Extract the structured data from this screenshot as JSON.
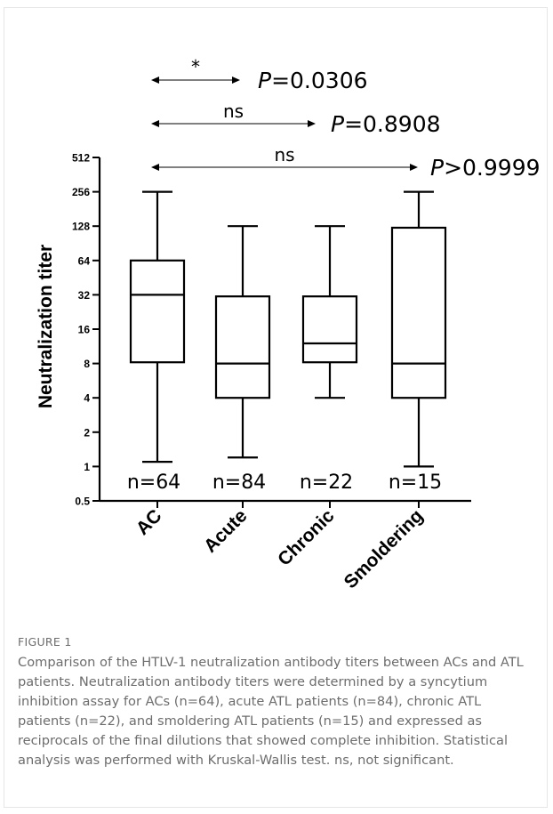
{
  "chart_data": {
    "type": "boxplot",
    "ylabel": "Neutralization titer",
    "yscale": "log2",
    "ylim": [
      0.5,
      512
    ],
    "yticks": [
      {
        "value": 0.5,
        "label": "0.5"
      },
      {
        "value": 1,
        "label": "1"
      },
      {
        "value": 2,
        "label": "2"
      },
      {
        "value": 4,
        "label": "4"
      },
      {
        "value": 8,
        "label": "8"
      },
      {
        "value": 16,
        "label": "16"
      },
      {
        "value": 32,
        "label": "32"
      },
      {
        "value": 64,
        "label": "64"
      },
      {
        "value": 128,
        "label": "128"
      },
      {
        "value": 256,
        "label": "256"
      },
      {
        "value": 512,
        "label": "512"
      }
    ],
    "categories": [
      "AC",
      "Acute",
      "Chronic",
      "Smoldering"
    ],
    "boxes": [
      {
        "name": "AC",
        "min": 1.1,
        "q1": 8.2,
        "median": 32,
        "q3": 64,
        "max": 256,
        "n_label": "n=64"
      },
      {
        "name": "Acute",
        "min": 1.2,
        "q1": 4,
        "median": 8,
        "q3": 31,
        "max": 128,
        "n_label": "n=84"
      },
      {
        "name": "Chronic",
        "min": 4,
        "q1": 8.2,
        "median": 12,
        "q3": 31,
        "max": 128,
        "n_label": "n=22"
      },
      {
        "name": "Smoldering",
        "min": 1,
        "q1": 4,
        "median": 8,
        "q3": 124,
        "max": 256,
        "n_label": "n=15"
      }
    ],
    "comparisons": [
      {
        "from": "AC",
        "to": "Acute",
        "label": "*",
        "p": "=0.0306"
      },
      {
        "from": "AC",
        "to": "Chronic",
        "label": "ns",
        "p": "=0.8908"
      },
      {
        "from": "AC",
        "to": "Smoldering",
        "label": "ns",
        "p": ">0.9999"
      }
    ],
    "p_prefix": "P"
  },
  "figure": {
    "label": "FIGURE 1",
    "caption": "Comparison of the HTLV-1 neutralization antibody titers between ACs and ATL patients. Neutralization antibody titers were determined by a syncytium inhibition assay for ACs (n=64), acute ATL patients (n=84), chronic ATL patients (n=22), and smoldering ATL patients (n=15) and expressed as reciprocals of the final dilutions that showed complete inhibition. Statistical analysis was performed with Kruskal-Wallis test. ns, not significant."
  }
}
